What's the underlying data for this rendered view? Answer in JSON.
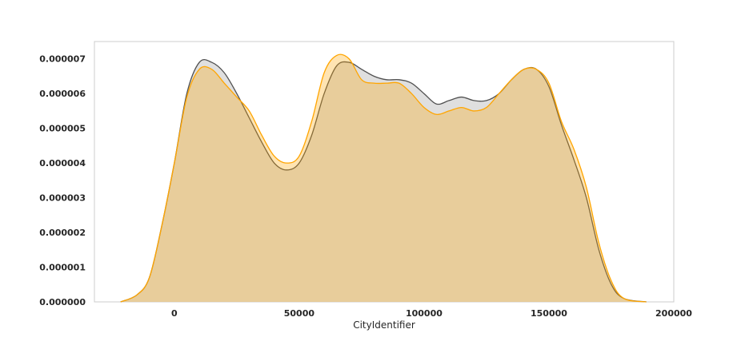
{
  "chart_data": {
    "type": "area",
    "title": "",
    "xlabel": "CityIdentifier",
    "ylabel": "",
    "xlim": [
      -32000,
      200000
    ],
    "ylim": [
      0,
      7.5e-06
    ],
    "grid": false,
    "legend": "none",
    "x_ticks": [
      0,
      50000,
      100000,
      150000,
      200000
    ],
    "x_tick_labels": [
      "0",
      "50000",
      "100000",
      "150000",
      "200000"
    ],
    "y_ticks": [
      0,
      1e-06,
      2e-06,
      3e-06,
      4e-06,
      5e-06,
      6e-06,
      7e-06
    ],
    "y_tick_labels": [
      "0.000000",
      "0.000001",
      "0.000002",
      "0.000003",
      "0.000004",
      "0.000005",
      "0.000006",
      "0.000007"
    ],
    "series": [
      {
        "color": "#505050",
        "fill": "#d9d9d9",
        "x": [
          -21500,
          -15000,
          -10000,
          -5000,
          0,
          5000,
          10000,
          15000,
          20000,
          25000,
          30000,
          35000,
          40000,
          45000,
          50000,
          55000,
          60000,
          65000,
          70000,
          75000,
          80000,
          85000,
          90000,
          95000,
          100000,
          105000,
          110000,
          115000,
          120000,
          125000,
          130000,
          135000,
          140000,
          145000,
          150000,
          155000,
          160000,
          165000,
          170000,
          175000,
          180000,
          189000
        ],
        "y": [
          0.0,
          2e-07,
          7e-07,
          2.2e-06,
          4e-06,
          6e-06,
          6.9e-06,
          6.9e-06,
          6.6e-06,
          6e-06,
          5.3e-06,
          4.6e-06,
          4e-06,
          3.8e-06,
          4e-06,
          4.8e-06,
          6e-06,
          6.8e-06,
          6.9e-06,
          6.7e-06,
          6.5e-06,
          6.4e-06,
          6.4e-06,
          6.3e-06,
          6e-06,
          5.7e-06,
          5.8e-06,
          5.9e-06,
          5.8e-06,
          5.8e-06,
          6e-06,
          6.4e-06,
          6.7e-06,
          6.7e-06,
          6.2e-06,
          5.1e-06,
          4.1e-06,
          3e-06,
          1.5e-06,
          5e-07,
          1e-07,
          0.0
        ]
      },
      {
        "color": "#ffa500",
        "fill": "#ffa500",
        "x": [
          -21500,
          -15000,
          -10000,
          -5000,
          0,
          5000,
          10000,
          15000,
          20000,
          25000,
          30000,
          35000,
          40000,
          45000,
          50000,
          55000,
          60000,
          65000,
          70000,
          75000,
          80000,
          85000,
          90000,
          95000,
          100000,
          105000,
          110000,
          115000,
          120000,
          125000,
          130000,
          135000,
          140000,
          145000,
          150000,
          155000,
          160000,
          165000,
          170000,
          175000,
          180000,
          189000
        ],
        "y": [
          0.0,
          2e-07,
          7e-07,
          2.2e-06,
          4e-06,
          5.9e-06,
          6.7e-06,
          6.7e-06,
          6.3e-06,
          5.9e-06,
          5.5e-06,
          4.8e-06,
          4.2e-06,
          4e-06,
          4.2e-06,
          5.2e-06,
          6.6e-06,
          7.1e-06,
          7e-06,
          6.4e-06,
          6.3e-06,
          6.3e-06,
          6.3e-06,
          6e-06,
          5.6e-06,
          5.4e-06,
          5.5e-06,
          5.6e-06,
          5.5e-06,
          5.6e-06,
          6e-06,
          6.4e-06,
          6.7e-06,
          6.7e-06,
          6.3e-06,
          5.2e-06,
          4.4e-06,
          3.3e-06,
          1.7e-06,
          6e-07,
          1e-07,
          0.0
        ]
      }
    ]
  }
}
